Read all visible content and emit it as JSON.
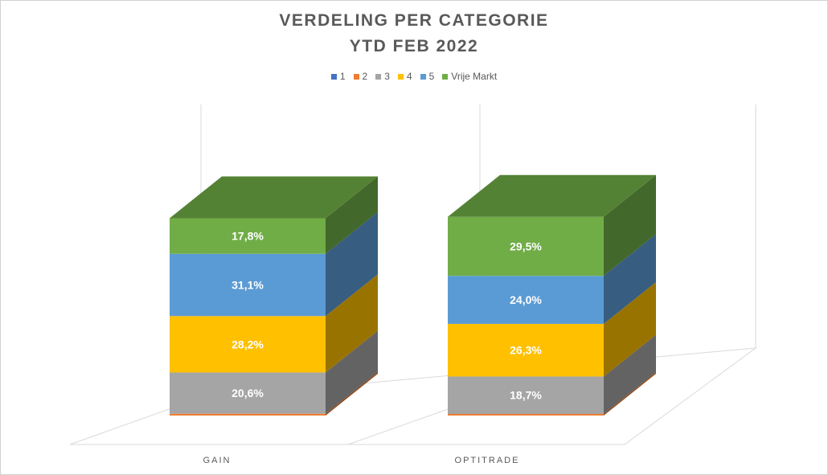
{
  "chart_data": {
    "type": "bar",
    "stacked": true,
    "percent": true,
    "three_d": true,
    "title_line1": "VERDELING PER CATEGORIE",
    "title_line2": "YTD FEB 2022",
    "categories": [
      "GAIN",
      "OPTITRADE"
    ],
    "legend_position": "top",
    "series": [
      {
        "name": "1",
        "color": "#4472C4",
        "values": [
          0.0,
          0.0
        ],
        "labels": [
          "",
          ""
        ]
      },
      {
        "name": "2",
        "color": "#ED7D31",
        "values": [
          0.9,
          0.8
        ],
        "labels": [
          "",
          ""
        ]
      },
      {
        "name": "3",
        "color": "#A5A5A5",
        "values": [
          20.6,
          18.7
        ],
        "labels": [
          "20,6%",
          "18,7%"
        ]
      },
      {
        "name": "4",
        "color": "#FFC000",
        "values": [
          28.2,
          26.3
        ],
        "labels": [
          "28,2%",
          "26,3%"
        ]
      },
      {
        "name": "5",
        "color": "#5B9BD5",
        "values": [
          31.1,
          24.0
        ],
        "labels": [
          "31,1%",
          "24,0%"
        ]
      },
      {
        "name": "Vrije Markt",
        "color": "#70AD47",
        "values": [
          17.8,
          29.5
        ],
        "labels": [
          "17,8%",
          "29,5%"
        ]
      }
    ],
    "ylim": [
      0,
      100
    ]
  }
}
